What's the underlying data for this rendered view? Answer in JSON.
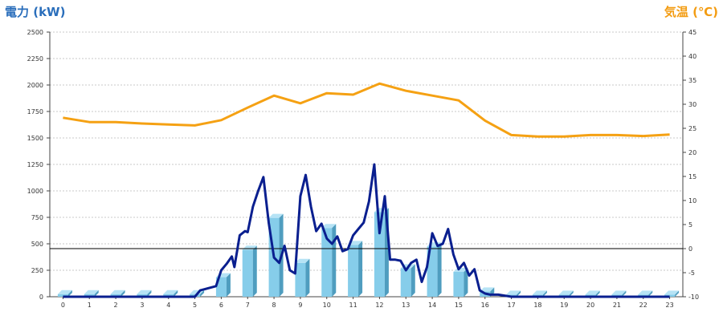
{
  "chart_data": {
    "type": "bar",
    "left_axis_title": "電力 (kW)",
    "right_axis_title": "気温 (℃)",
    "categories": [
      "0",
      "1",
      "2",
      "3",
      "4",
      "5",
      "6",
      "7",
      "8",
      "9",
      "10",
      "11",
      "12",
      "13",
      "14",
      "15",
      "16",
      "17",
      "18",
      "19",
      "20",
      "21",
      "22",
      "23"
    ],
    "left_ylim": [
      0,
      2500
    ],
    "left_yticks": [
      0,
      250,
      500,
      750,
      1000,
      1250,
      1500,
      1750,
      2000,
      2250,
      2500
    ],
    "right_ylim": [
      -10,
      45
    ],
    "right_yticks": [
      -10,
      -5,
      0,
      5,
      10,
      15,
      20,
      25,
      30,
      35,
      40,
      45
    ],
    "grid": true,
    "reference_line_temperature": 0,
    "series": [
      {
        "kind": "bar",
        "axis": "left",
        "color": "#7ec8e8",
        "values": [
          25,
          25,
          25,
          25,
          25,
          25,
          185,
          445,
          745,
          320,
          650,
          490,
          800,
          270,
          475,
          235,
          50,
          20,
          20,
          20,
          20,
          20,
          20,
          20
        ]
      },
      {
        "kind": "line",
        "axis": "left",
        "color": "#0a1f8f",
        "x": [
          0,
          0.5,
          1,
          1.5,
          2,
          2.5,
          3,
          3.5,
          4,
          4.5,
          5,
          5.2,
          5.5,
          5.8,
          6,
          6.2,
          6.4,
          6.5,
          6.7,
          6.9,
          7,
          7.2,
          7.4,
          7.6,
          7.8,
          8,
          8.2,
          8.4,
          8.6,
          8.8,
          9,
          9.2,
          9.4,
          9.6,
          9.8,
          10,
          10.2,
          10.4,
          10.6,
          10.8,
          11,
          11.2,
          11.4,
          11.6,
          11.8,
          12,
          12.2,
          12.4,
          12.6,
          12.8,
          13,
          13.2,
          13.4,
          13.6,
          13.8,
          14,
          14.2,
          14.4,
          14.6,
          14.8,
          15,
          15.2,
          15.4,
          15.6,
          15.8,
          16,
          16.2,
          16.5,
          17,
          18,
          19,
          20,
          21,
          22,
          23
        ],
        "y": [
          0,
          0,
          0,
          0,
          0,
          0,
          0,
          0,
          0,
          0,
          0,
          60,
          80,
          100,
          250,
          310,
          380,
          280,
          580,
          620,
          610,
          850,
          1000,
          1130,
          700,
          370,
          320,
          480,
          250,
          220,
          950,
          1150,
          850,
          620,
          690,
          550,
          500,
          570,
          430,
          450,
          580,
          640,
          700,
          900,
          1250,
          600,
          950,
          350,
          350,
          340,
          250,
          320,
          350,
          140,
          280,
          600,
          480,
          500,
          640,
          400,
          260,
          320,
          200,
          260,
          60,
          30,
          20,
          20,
          0,
          0,
          0,
          0,
          0,
          0,
          0
        ]
      },
      {
        "kind": "line",
        "axis": "right",
        "color": "#f5a113",
        "values": [
          27.2,
          26.3,
          26.3,
          26.0,
          25.8,
          25.6,
          26.7,
          29.3,
          31.8,
          30.2,
          32.3,
          32.0,
          34.3,
          32.8,
          31.8,
          30.8,
          26.6,
          23.6,
          23.3,
          23.3,
          23.6,
          23.6,
          23.4,
          23.7
        ]
      }
    ]
  }
}
